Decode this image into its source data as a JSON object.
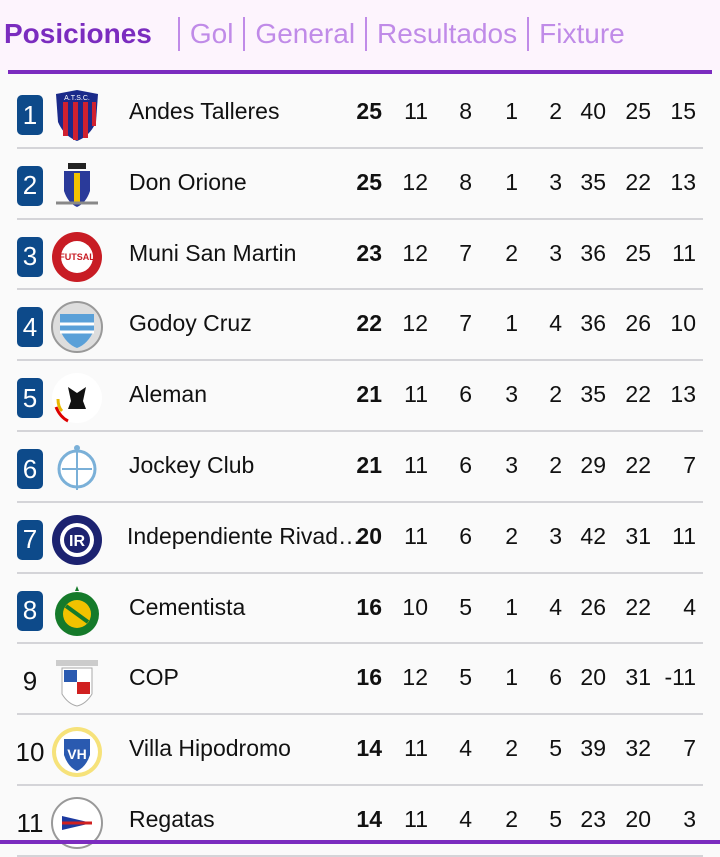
{
  "tabs": [
    {
      "label": "Posiciones",
      "active": true
    },
    {
      "label": "Gol",
      "active": false
    },
    {
      "label": "General",
      "active": false
    },
    {
      "label": "Resultados",
      "active": false
    },
    {
      "label": "Fixture",
      "active": false
    }
  ],
  "colors": {
    "accent": "#7b2cbf",
    "tab_inactive": "#c08be8",
    "position_badge": "#0d4a8a"
  },
  "standings": [
    {
      "pos": "1",
      "badge": true,
      "team": "Andes Talleres",
      "crest": "shield-blue-red",
      "pts": "25",
      "pj": "11",
      "g": "8",
      "e": "1",
      "p": "2",
      "gf": "40",
      "gc": "25",
      "dg": "15"
    },
    {
      "pos": "2",
      "badge": true,
      "team": "Don Orione",
      "crest": "shield-blue-yellow",
      "pts": "25",
      "pj": "12",
      "g": "8",
      "e": "1",
      "p": "3",
      "gf": "35",
      "gc": "22",
      "dg": "13"
    },
    {
      "pos": "3",
      "badge": true,
      "team": "Muni San Martin",
      "crest": "circle-red",
      "pts": "23",
      "pj": "12",
      "g": "7",
      "e": "2",
      "p": "3",
      "gf": "36",
      "gc": "25",
      "dg": "11"
    },
    {
      "pos": "4",
      "badge": true,
      "team": "Godoy Cruz",
      "crest": "circle-lightblue",
      "pts": "22",
      "pj": "12",
      "g": "7",
      "e": "1",
      "p": "4",
      "gf": "36",
      "gc": "26",
      "dg": "10"
    },
    {
      "pos": "5",
      "badge": true,
      "team": "Aleman",
      "crest": "circle-eagle",
      "pts": "21",
      "pj": "11",
      "g": "6",
      "e": "3",
      "p": "2",
      "gf": "35",
      "gc": "22",
      "dg": "13"
    },
    {
      "pos": "6",
      "badge": true,
      "team": "Jockey Club",
      "crest": "circle-white-blue",
      "pts": "21",
      "pj": "11",
      "g": "6",
      "e": "3",
      "p": "2",
      "gf": "29",
      "gc": "22",
      "dg": "7"
    },
    {
      "pos": "7",
      "badge": true,
      "team": "Independiente Rivadavia",
      "crest": "circle-navy",
      "pts": "20",
      "pj": "11",
      "g": "6",
      "e": "2",
      "p": "3",
      "gf": "42",
      "gc": "31",
      "dg": "11"
    },
    {
      "pos": "8",
      "badge": true,
      "team": "Cementista",
      "crest": "circle-green-yellow",
      "pts": "16",
      "pj": "10",
      "g": "5",
      "e": "1",
      "p": "4",
      "gf": "26",
      "gc": "22",
      "dg": "4"
    },
    {
      "pos": "9",
      "badge": false,
      "team": "COP",
      "crest": "shield-cop",
      "pts": "16",
      "pj": "12",
      "g": "5",
      "e": "1",
      "p": "6",
      "gf": "20",
      "gc": "31",
      "dg": "-11"
    },
    {
      "pos": "10",
      "badge": false,
      "team": "Villa Hipodromo",
      "crest": "circle-yellow-blue",
      "pts": "14",
      "pj": "11",
      "g": "4",
      "e": "2",
      "p": "5",
      "gf": "39",
      "gc": "32",
      "dg": "7"
    },
    {
      "pos": "11",
      "badge": false,
      "team": "Regatas",
      "crest": "circle-regatas",
      "pts": "14",
      "pj": "11",
      "g": "4",
      "e": "2",
      "p": "5",
      "gf": "23",
      "gc": "20",
      "dg": "3"
    }
  ]
}
